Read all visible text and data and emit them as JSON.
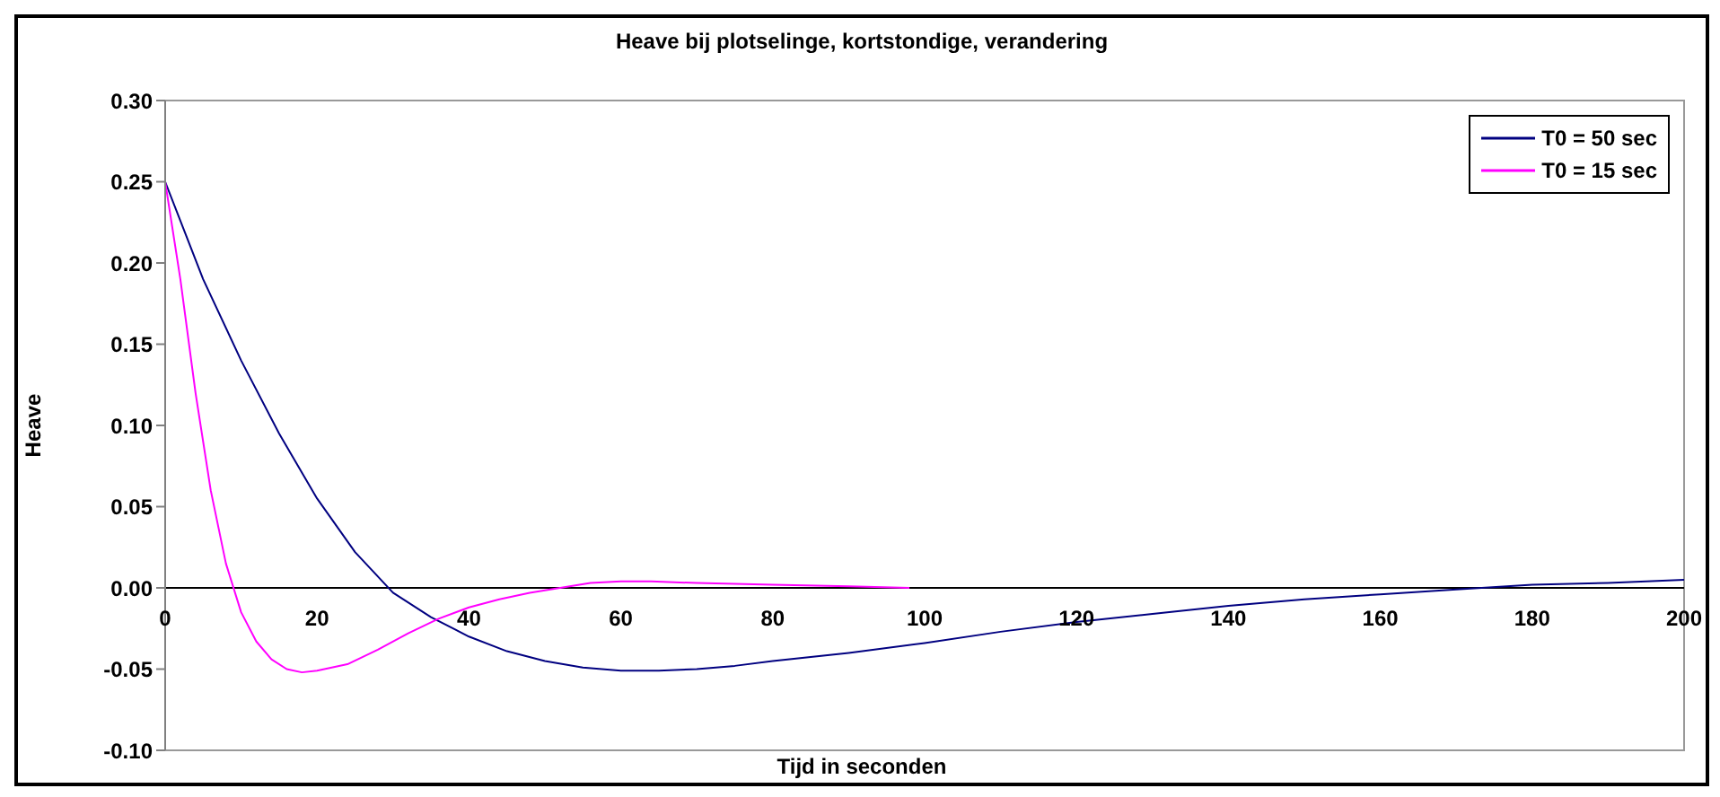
{
  "chart_data": {
    "type": "line",
    "title": "Heave bij plotselinge, kortstondige, verandering",
    "xlabel": "Tijd in seconden",
    "ylabel": "Heave",
    "xlim": [
      0,
      200
    ],
    "xticks": [
      0,
      20,
      40,
      60,
      80,
      100,
      120,
      140,
      160,
      180,
      200
    ],
    "ylim": [
      -0.1,
      0.3
    ],
    "yticks": [
      {
        "value": -0.1,
        "label": "-0.10"
      },
      {
        "value": -0.05,
        "label": "-0.05"
      },
      {
        "value": 0,
        "label": "0.00"
      },
      {
        "value": 0.05,
        "label": "0.05"
      },
      {
        "value": 0.1,
        "label": "0.10"
      },
      {
        "value": 0.15,
        "label": "0.15"
      },
      {
        "value": 0.2,
        "label": "0.20"
      },
      {
        "value": 0.25,
        "label": "0.25"
      },
      {
        "value": 0.3,
        "label": "0.30"
      }
    ],
    "grid": false,
    "legend": "top right",
    "marker": "none",
    "line_style": "solid",
    "series": [
      {
        "name": "T0 = 50 sec",
        "color": "#000080",
        "x": [
          0,
          5,
          10,
          15,
          20,
          25,
          30,
          35,
          40,
          45,
          50,
          55,
          60,
          65,
          70,
          75,
          80,
          90,
          100,
          110,
          120,
          130,
          140,
          150,
          160,
          170,
          180,
          190,
          200
        ],
        "values": [
          0.25,
          0.19,
          0.14,
          0.095,
          0.055,
          0.022,
          -0.003,
          -0.018,
          -0.03,
          -0.039,
          -0.045,
          -0.049,
          -0.051,
          -0.051,
          -0.05,
          -0.048,
          -0.045,
          -0.04,
          -0.034,
          -0.027,
          -0.021,
          -0.016,
          -0.011,
          -0.007,
          -0.004,
          -0.001,
          0.002,
          0.003,
          0.005
        ]
      },
      {
        "name": "T0 = 15 sec",
        "color": "#ff00ff",
        "x": [
          0,
          2,
          4,
          6,
          8,
          10,
          12,
          14,
          16,
          18,
          20,
          24,
          28,
          32,
          36,
          40,
          44,
          48,
          52,
          56,
          60,
          64,
          70,
          80,
          90,
          98
        ],
        "values": [
          0.25,
          0.19,
          0.12,
          0.06,
          0.015,
          -0.015,
          -0.033,
          -0.044,
          -0.05,
          -0.052,
          -0.051,
          -0.047,
          -0.038,
          -0.028,
          -0.019,
          -0.012,
          -0.007,
          -0.003,
          0,
          0.003,
          0.004,
          0.004,
          0.003,
          0.002,
          0.001,
          0
        ]
      }
    ]
  }
}
